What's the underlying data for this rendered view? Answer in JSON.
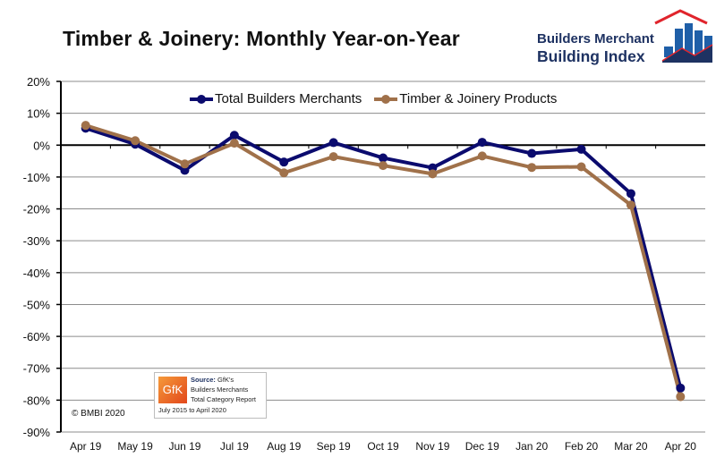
{
  "header": {
    "title": "Timber & Joinery: Monthly Year-on-Year",
    "logo_line1": "Builders Merchant",
    "logo_line2": "Building Index"
  },
  "source_box": {
    "logo_text": "GfK",
    "source_label": "Source:",
    "source_name": "GfK's",
    "line2": "Builders Merchants",
    "line3": "Total Category Report",
    "date_range": "July 2015 to April 2020"
  },
  "copyright": "© BMBI 2020",
  "colors": {
    "total": "#0b0b6e",
    "timber": "#a0714a",
    "grid": "#8c8c8c",
    "axis": "#000000",
    "logo_navy": "#1e3262",
    "logo_blue": "#1f5fa8",
    "logo_red": "#e0242c"
  },
  "chart_data": {
    "type": "line",
    "title": "Timber & Joinery: Monthly Year-on-Year",
    "xlabel": "",
    "ylabel": "",
    "categories": [
      "Apr 19",
      "May 19",
      "Jun 19",
      "Jul 19",
      "Aug 19",
      "Sep 19",
      "Oct 19",
      "Nov 19",
      "Dec 19",
      "Jan 20",
      "Feb 20",
      "Mar 20",
      "Apr 20"
    ],
    "series": [
      {
        "name": "Total Builders Merchants",
        "values": [
          5.3,
          0.3,
          -7.9,
          3.1,
          -5.3,
          0.8,
          -4.0,
          -7.1,
          0.9,
          -2.6,
          -1.3,
          -15.2,
          -76.2
        ]
      },
      {
        "name": "Timber & Joinery Products",
        "values": [
          6.2,
          1.4,
          -5.9,
          0.6,
          -8.7,
          -3.6,
          -6.4,
          -9.0,
          -3.4,
          -7.0,
          -6.8,
          -18.8,
          -78.9
        ]
      }
    ],
    "ylim": [
      -90,
      20
    ],
    "yticks": [
      20,
      10,
      0,
      -10,
      -20,
      -30,
      -40,
      -50,
      -60,
      -70,
      -80,
      -90
    ],
    "ytick_labels": [
      "20%",
      "10%",
      "0%",
      "-10%",
      "-20%",
      "-30%",
      "-40%",
      "-50%",
      "-60%",
      "-70%",
      "-80%",
      "-90%"
    ],
    "grid": true,
    "legend_position": "top-center"
  }
}
